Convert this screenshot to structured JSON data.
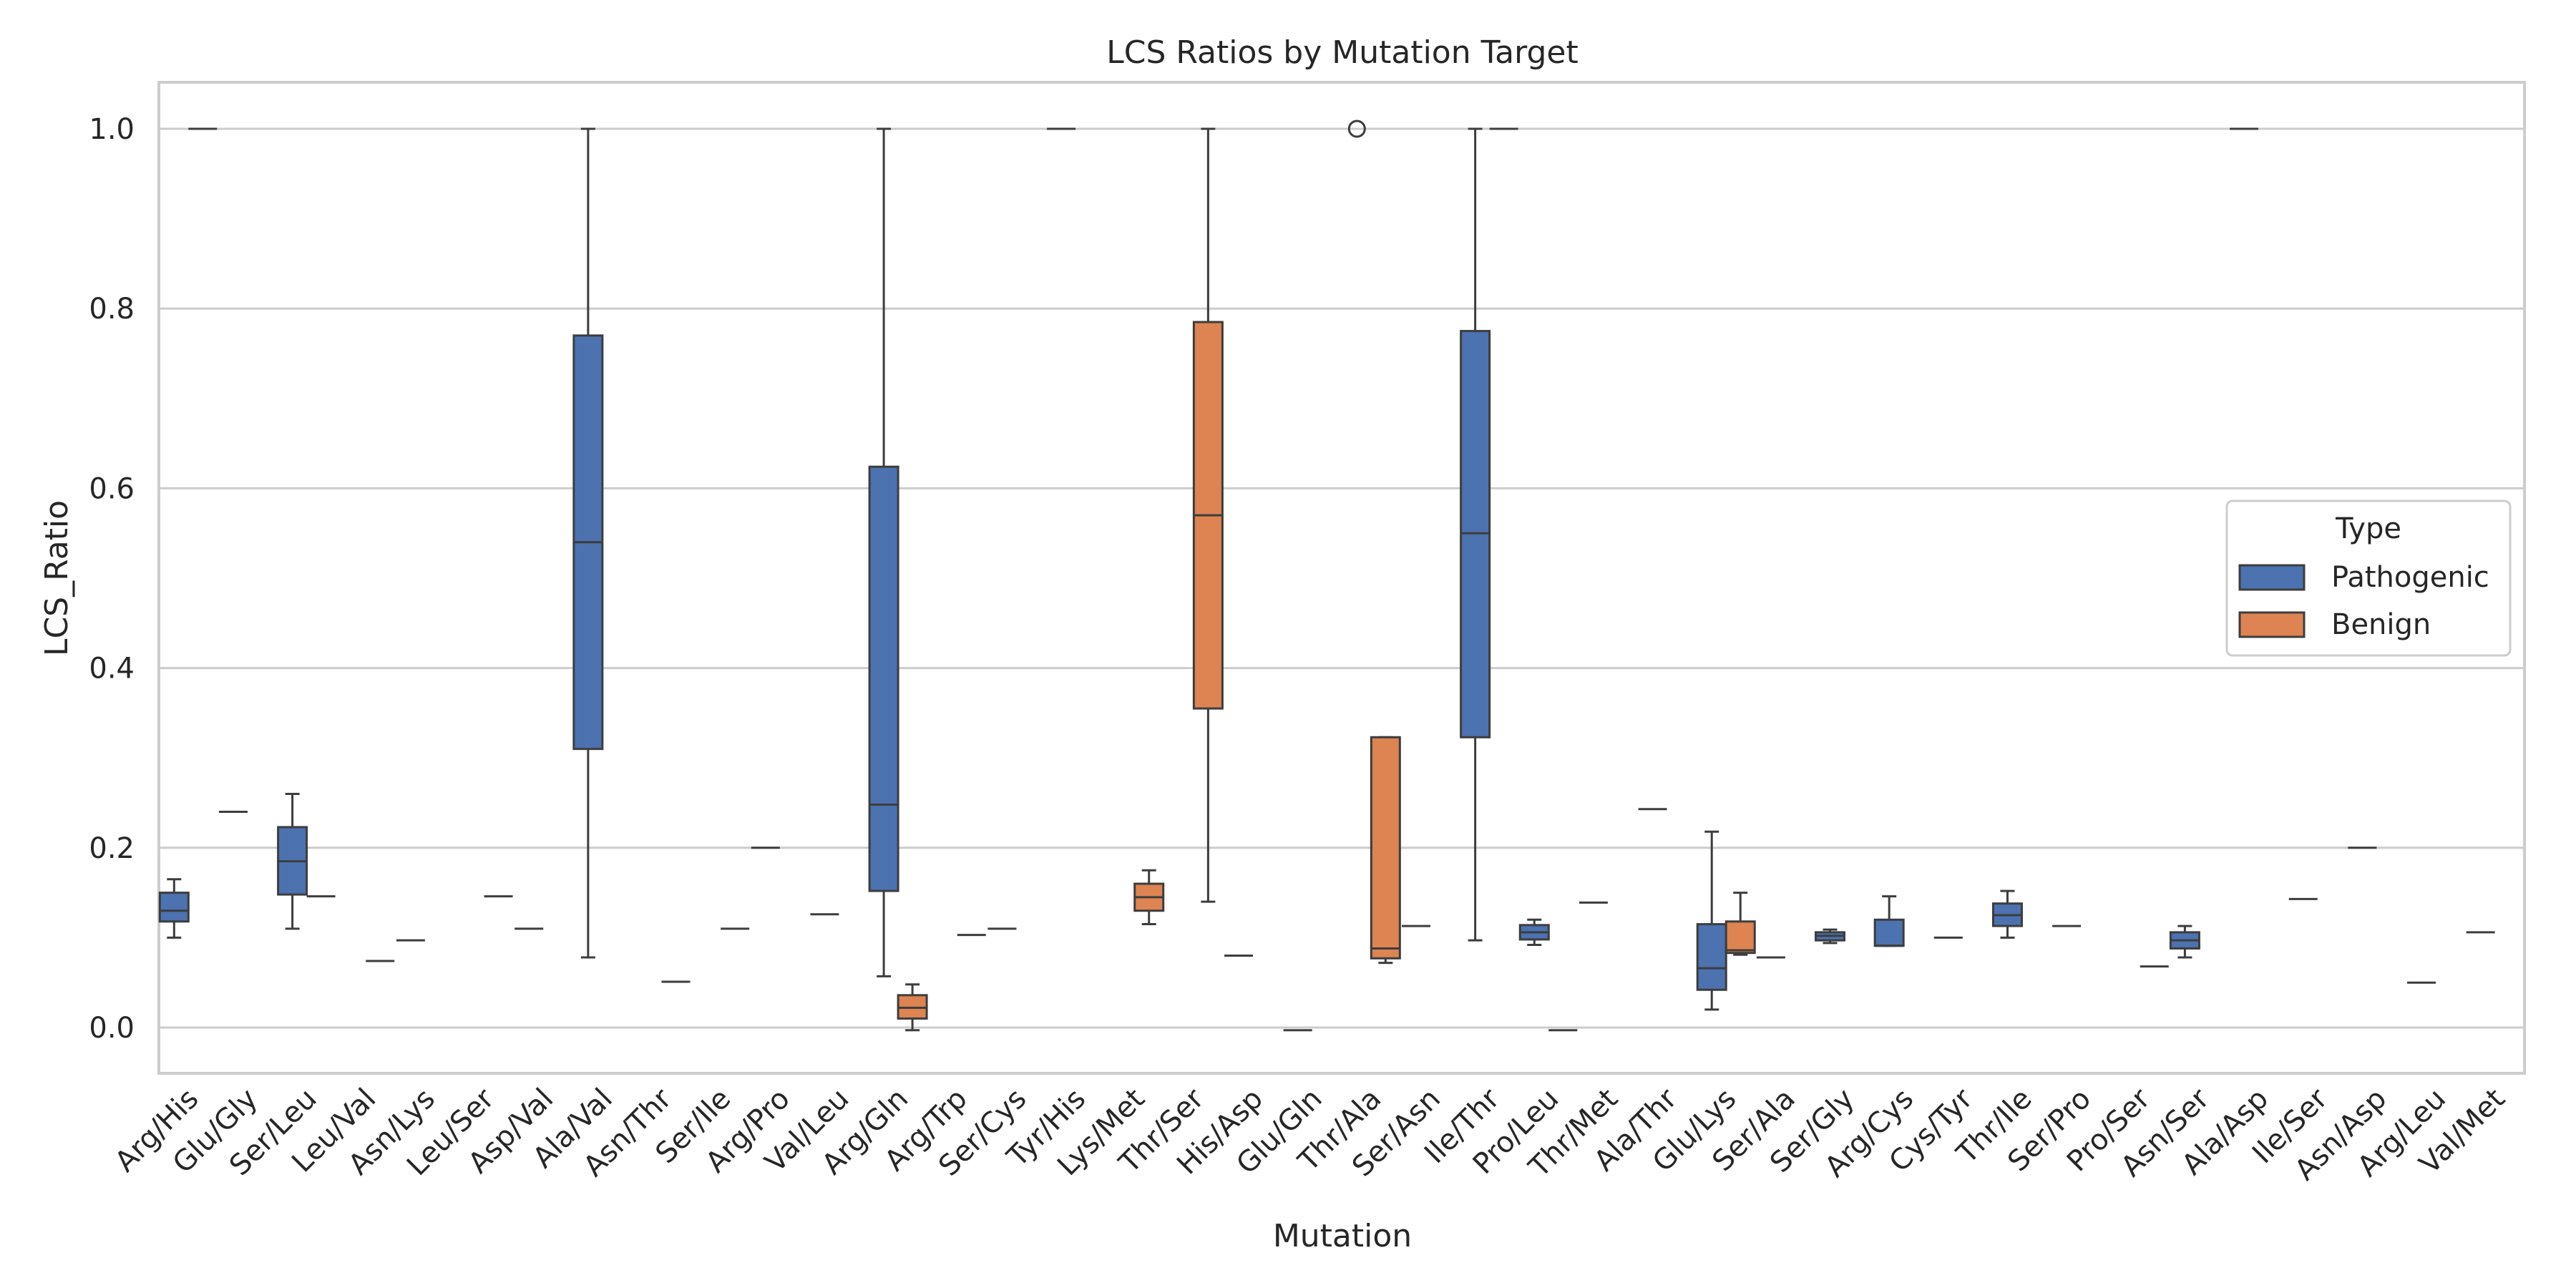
{
  "chart_data": {
    "type": "box",
    "title": "LCS Ratios by Mutation Target",
    "xlabel": "Mutation",
    "ylabel": "LCS_Ratio",
    "ylim": [
      -0.052,
      1.052
    ],
    "yticks": [
      0.0,
      0.2,
      0.4,
      0.6,
      0.8,
      1.0
    ],
    "ytick_labels": [
      "0.0",
      "0.2",
      "0.4",
      "0.6",
      "0.8",
      "1.0"
    ],
    "grid": "horizontal",
    "legend": {
      "title": "Type",
      "placement": "center-right"
    },
    "categories": [
      "Arg/His",
      "Glu/Gly",
      "Ser/Leu",
      "Leu/Val",
      "Asn/Lys",
      "Leu/Ser",
      "Asp/Val",
      "Ala/Val",
      "Asn/Thr",
      "Ser/Ile",
      "Arg/Pro",
      "Val/Leu",
      "Arg/Gln",
      "Arg/Trp",
      "Ser/Cys",
      "Tyr/His",
      "Lys/Met",
      "Thr/Ser",
      "His/Asp",
      "Glu/Gln",
      "Thr/Ala",
      "Ser/Asn",
      "Ile/Thr",
      "Pro/Leu",
      "Thr/Met",
      "Ala/Thr",
      "Glu/Lys",
      "Ser/Ala",
      "Ser/Gly",
      "Arg/Cys",
      "Cys/Tyr",
      "Thr/Ile",
      "Ser/Pro",
      "Pro/Ser",
      "Asn/Ser",
      "Ala/Asp",
      "Ile/Ser",
      "Asn/Asp",
      "Arg/Leu",
      "Val/Met"
    ],
    "series": [
      {
        "name": "Pathogenic",
        "color": "#4c72b0",
        "boxes": [
          {
            "category": "Arg/His",
            "whislo": 0.1,
            "q1": 0.118,
            "median": 0.13,
            "q3": 0.15,
            "whishi": 0.165
          },
          {
            "category": "Glu/Gly",
            "value": 0.24
          },
          {
            "category": "Ser/Leu",
            "whislo": 0.11,
            "q1": 0.148,
            "median": 0.185,
            "q3": 0.223,
            "whishi": 0.26
          },
          {
            "category": "Asn/Lys",
            "value": 0.097
          },
          {
            "category": "Asp/Val",
            "value": 0.11
          },
          {
            "category": "Ala/Val",
            "whislo": 0.078,
            "q1": 0.31,
            "median": 0.54,
            "q3": 0.77,
            "whishi": 1.0
          },
          {
            "category": "Arg/Pro",
            "value": 0.2
          },
          {
            "category": "Val/Leu",
            "value": 0.126
          },
          {
            "category": "Arg/Gln",
            "whislo": 0.057,
            "q1": 0.152,
            "median": 0.248,
            "q3": 0.624,
            "whishi": 1.0
          },
          {
            "category": "Ser/Cys",
            "value": 0.11
          },
          {
            "category": "Tyr/His",
            "value": 1.0
          },
          {
            "category": "His/Asp",
            "value": 0.08
          },
          {
            "category": "Glu/Gln",
            "value": -0.003
          },
          {
            "category": "Thr/Ala",
            "outliers": [
              1.0
            ]
          },
          {
            "category": "Ser/Asn",
            "value": 0.113
          },
          {
            "category": "Ile/Thr",
            "whislo": 0.097,
            "q1": 0.323,
            "median": 0.55,
            "q3": 0.775,
            "whishi": 1.0
          },
          {
            "category": "Pro/Leu",
            "whislo": 0.092,
            "q1": 0.098,
            "median": 0.106,
            "q3": 0.114,
            "whishi": 0.12
          },
          {
            "category": "Thr/Met",
            "value": 0.139
          },
          {
            "category": "Ala/Thr",
            "value": 0.243
          },
          {
            "category": "Glu/Lys",
            "whislo": 0.02,
            "q1": 0.042,
            "median": 0.066,
            "q3": 0.115,
            "whishi": 0.218
          },
          {
            "category": "Ser/Ala",
            "value": 0.078
          },
          {
            "category": "Ser/Gly",
            "whislo": 0.094,
            "q1": 0.097,
            "median": 0.102,
            "q3": 0.106,
            "whishi": 0.109
          },
          {
            "category": "Arg/Cys",
            "whislo": 0.091,
            "q1": 0.091,
            "median": 0.091,
            "q3": 0.12,
            "whishi": 0.146
          },
          {
            "category": "Cys/Tyr",
            "value": 0.1
          },
          {
            "category": "Thr/Ile",
            "whislo": 0.1,
            "q1": 0.113,
            "median": 0.125,
            "q3": 0.138,
            "whishi": 0.152
          },
          {
            "category": "Ser/Pro",
            "value": 0.113
          },
          {
            "category": "Asn/Ser",
            "whislo": 0.078,
            "q1": 0.088,
            "median": 0.097,
            "q3": 0.106,
            "whishi": 0.113
          },
          {
            "category": "Ala/Asp",
            "value": 1.0
          },
          {
            "category": "Ile/Ser",
            "value": 0.143
          },
          {
            "category": "Asn/Asp",
            "value": 0.2
          },
          {
            "category": "Arg/Leu",
            "value": 0.05
          },
          {
            "category": "Val/Met",
            "value": 0.106
          }
        ]
      },
      {
        "name": "Benign",
        "color": "#dd8452",
        "boxes": [
          {
            "category": "Arg/His",
            "value": 1.0
          },
          {
            "category": "Ser/Leu",
            "value": 0.146
          },
          {
            "category": "Leu/Val",
            "value": 0.074
          },
          {
            "category": "Leu/Ser",
            "value": 0.146
          },
          {
            "category": "Asn/Thr",
            "value": 0.051
          },
          {
            "category": "Ser/Ile",
            "value": 0.11
          },
          {
            "category": "Arg/Gln",
            "whislo": -0.003,
            "q1": 0.01,
            "median": 0.022,
            "q3": 0.036,
            "whishi": 0.048
          },
          {
            "category": "Arg/Trp",
            "value": 0.103
          },
          {
            "category": "Lys/Met",
            "whislo": 0.115,
            "q1": 0.13,
            "median": 0.145,
            "q3": 0.16,
            "whishi": 0.175
          },
          {
            "category": "Thr/Ser",
            "whislo": 0.14,
            "q1": 0.355,
            "median": 0.57,
            "q3": 0.785,
            "whishi": 1.0
          },
          {
            "category": "Thr/Ala",
            "whislo": 0.072,
            "q1": 0.077,
            "median": 0.088,
            "q3": 0.323,
            "whishi": 0.323
          },
          {
            "category": "Ile/Thr",
            "value": 1.0
          },
          {
            "category": "Pro/Leu",
            "value": -0.003
          },
          {
            "category": "Glu/Lys",
            "whislo": 0.081,
            "q1": 0.083,
            "median": 0.086,
            "q3": 0.118,
            "whishi": 0.15
          },
          {
            "category": "Pro/Ser",
            "value": 0.068
          }
        ]
      }
    ]
  }
}
